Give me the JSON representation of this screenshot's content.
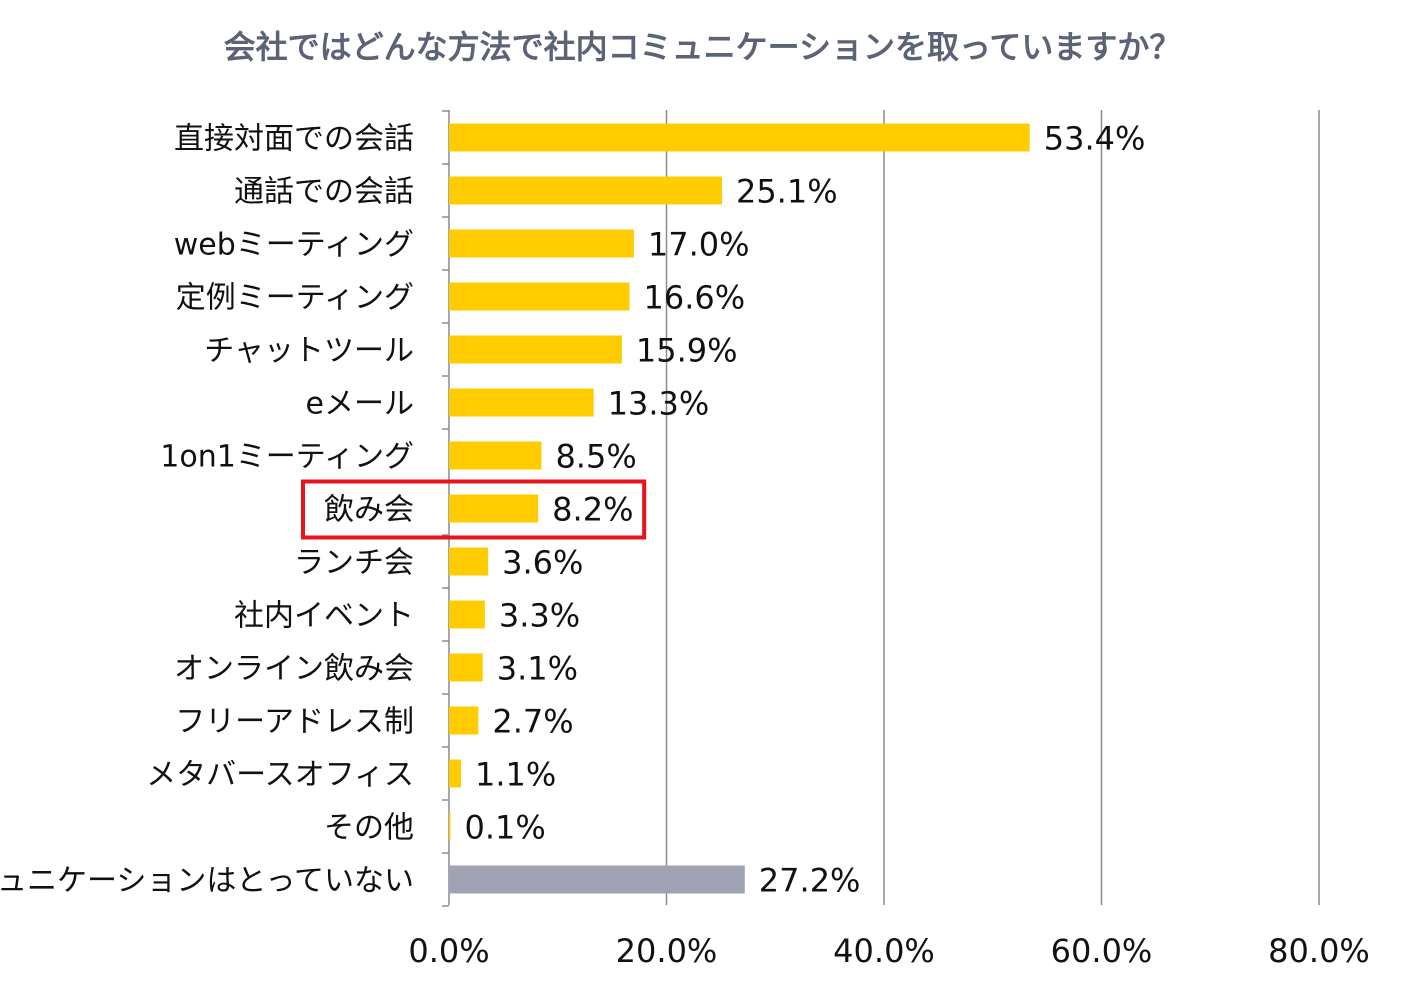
{
  "chart_data": {
    "type": "bar",
    "orientation": "horizontal",
    "title": "会社ではどんな方法で社内コミュニケーションを取っていますか？",
    "categories": [
      "直接対面での会話",
      "通話での会話",
      "webミーティング",
      "定例ミーティング",
      "チャットツール",
      "eメール",
      "1on1ミーティング",
      "飲み会",
      "ランチ会",
      "社内イベント",
      "オンライン飲み会",
      "フリーアドレス制",
      "メタバースオフィス",
      "その他",
      "コミュニケーションはとっていない"
    ],
    "values": [
      53.4,
      25.1,
      17.0,
      16.6,
      15.9,
      13.3,
      8.5,
      8.2,
      3.6,
      3.3,
      3.1,
      2.7,
      1.1,
      0.1,
      27.2
    ],
    "value_labels": [
      "53.4%",
      "25.1%",
      "17.0%",
      "16.6%",
      "15.9%",
      "13.3%",
      "8.5%",
      "8.2%",
      "3.6%",
      "3.3%",
      "3.1%",
      "2.7%",
      "1.1%",
      "0.1%",
      "27.2%"
    ],
    "bar_colors": [
      "#ffcc00",
      "#ffcc00",
      "#ffcc00",
      "#ffcc00",
      "#ffcc00",
      "#ffcc00",
      "#ffcc00",
      "#ffcc00",
      "#ffcc00",
      "#ffcc00",
      "#ffcc00",
      "#ffcc00",
      "#ffcc00",
      "#ffcc00",
      "#9ea2b3"
    ],
    "highlighted_category": "飲み会",
    "highlight_color": "#e8141c",
    "xlim": [
      0,
      80
    ],
    "xticks": [
      0,
      20,
      40,
      60,
      80
    ],
    "xtick_labels": [
      "0.0%",
      "20.0%",
      "40.0%",
      "60.0%",
      "80.0%"
    ],
    "grid": true,
    "xlabel": "",
    "ylabel": ""
  },
  "colors": {
    "title": "#5b6477",
    "grid": "#8c8c8c",
    "axis": "#8c8c8c"
  }
}
